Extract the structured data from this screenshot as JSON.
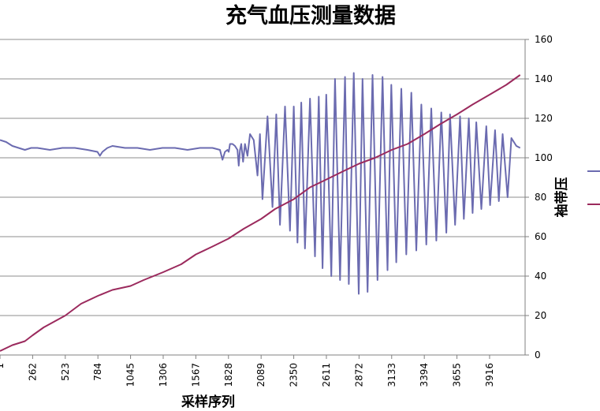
{
  "chart_data": {
    "type": "line",
    "title": "充气血压测量数据",
    "xlabel": "采样序列",
    "ylabel_right": "袖带压",
    "x_ticks": [
      "1",
      "262",
      "523",
      "784",
      "1045",
      "1306",
      "1567",
      "1828",
      "2089",
      "2350",
      "2611",
      "2872",
      "3133",
      "3394",
      "3655",
      "3916"
    ],
    "y_ticks": [
      "0",
      "20",
      "40",
      "60",
      "80",
      "100",
      "120",
      "140",
      "160"
    ],
    "xlim": [
      1,
      4200
    ],
    "ylim": [
      0,
      160
    ],
    "grid": true,
    "legend": "right",
    "series": [
      {
        "color": "#6b6bb0",
        "x": [
          1,
          50,
          100,
          150,
          200,
          250,
          300,
          400,
          500,
          600,
          700,
          780,
          800,
          820,
          860,
          900,
          1000,
          1100,
          1200,
          1300,
          1400,
          1500,
          1600,
          1700,
          1760,
          1780,
          1800,
          1820,
          1830,
          1840,
          1860,
          1880,
          1900,
          1910,
          1920,
          1930,
          1945,
          1960,
          1980,
          2000,
          2030,
          2060,
          2080,
          2100,
          2140,
          2180,
          2210,
          2240,
          2280,
          2320,
          2350,
          2380,
          2410,
          2440,
          2480,
          2520,
          2550,
          2580,
          2610,
          2650,
          2680,
          2720,
          2760,
          2790,
          2830,
          2870,
          2900,
          2940,
          2980,
          3020,
          3060,
          3100,
          3130,
          3170,
          3210,
          3250,
          3290,
          3330,
          3370,
          3410,
          3450,
          3490,
          3530,
          3570,
          3600,
          3640,
          3680,
          3710,
          3750,
          3780,
          3810,
          3850,
          3890,
          3920,
          3960,
          3990,
          4020,
          4060,
          4090,
          4130,
          4160
        ],
        "y": [
          109,
          108,
          106,
          105,
          104,
          105,
          105,
          104,
          105,
          105,
          104,
          103,
          101,
          103,
          105,
          106,
          105,
          105,
          104,
          105,
          105,
          104,
          105,
          105,
          104,
          99,
          103,
          104,
          103,
          107,
          107,
          106,
          104,
          96,
          104,
          107,
          98,
          107,
          101,
          112,
          109,
          91,
          112,
          79,
          121,
          75,
          122,
          66,
          126,
          63,
          126,
          57,
          128,
          54,
          130,
          50,
          131,
          44,
          132,
          40,
          140,
          38,
          141,
          36,
          143,
          31,
          140,
          32,
          142,
          38,
          141,
          43,
          137,
          47,
          135,
          51,
          133,
          53,
          127,
          56,
          125,
          58,
          123,
          62,
          122,
          66,
          121,
          69,
          120,
          72,
          118,
          74,
          116,
          76,
          114,
          78,
          112,
          80,
          110,
          106,
          105
        ]
      },
      {
        "color": "#9b2a5d",
        "x": [
          1,
          100,
          200,
          262,
          350,
          523,
          650,
          784,
          900,
          1045,
          1150,
          1306,
          1450,
          1567,
          1700,
          1828,
          1950,
          2089,
          2200,
          2350,
          2480,
          2611,
          2740,
          2872,
          3000,
          3133,
          3260,
          3394,
          3520,
          3655,
          3780,
          3916,
          4050,
          4160
        ],
        "y": [
          2,
          5,
          7,
          10,
          14,
          20,
          26,
          30,
          33,
          35,
          38,
          42,
          46,
          51,
          55,
          59,
          64,
          69,
          74,
          79,
          85,
          89,
          93,
          97,
          100,
          104,
          107,
          112,
          117,
          122,
          127,
          132,
          137,
          142
        ]
      }
    ]
  }
}
